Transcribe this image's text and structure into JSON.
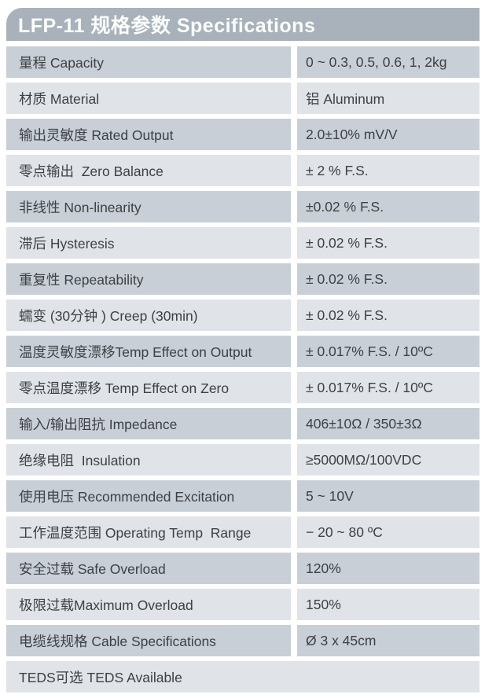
{
  "header": {
    "title": "LFP-11 规格参数 Specifications"
  },
  "colors": {
    "page_background": "#ffffff",
    "header_background": "#a9b2ba",
    "header_text": "#fcfdfd",
    "row_dark": "#c9cfd6",
    "row_light": "#e0e3e7",
    "cell_text": "#3d4145"
  },
  "table": {
    "rows": [
      {
        "label": "量程 Capacity",
        "value": "0 ~ 0.3, 0.5, 0.6, 1, 2kg"
      },
      {
        "label": "材质 Material",
        "value": "铝 Aluminum"
      },
      {
        "label": "输出灵敏度 Rated Output",
        "value": "2.0±10% mV/V"
      },
      {
        "label": "零点输出  Zero Balance",
        "value": "± 2 % F.S."
      },
      {
        "label": "非线性 Non-linearity",
        "value": "±0.02 % F.S."
      },
      {
        "label": "滞后 Hysteresis",
        "value": "± 0.02 % F.S."
      },
      {
        "label": "重复性 Repeatability",
        "value": "± 0.02 % F.S."
      },
      {
        "label": "蠕变 (30分钟 ) Creep (30min)",
        "value": "± 0.02 % F.S."
      },
      {
        "label": "温度灵敏度漂移Temp Effect on Output",
        "value": "± 0.017% F.S. / 10ºC"
      },
      {
        "label": "零点温度漂移 Temp Effect on Zero",
        "value": "± 0.017% F.S. / 10ºC"
      },
      {
        "label": "输入/输出阻抗 Impedance",
        "value": "406±10Ω / 350±3Ω"
      },
      {
        "label": "绝缘电阻  Insulation",
        "value": "≥5000MΩ/100VDC"
      },
      {
        "label": "使用电压 Recommended Excitation",
        "value": "5 ~ 10V"
      },
      {
        "label": "工作温度范围 Operating Temp  Range",
        "value": "− 20 ~ 80 ºC"
      },
      {
        "label": "安全过载 Safe Overload",
        "value": "120%"
      },
      {
        "label": "极限过载Maximum Overload",
        "value": "150%"
      },
      {
        "label": "电缆线规格 Cable Specifications",
        "value": "Ø 3 x 45cm"
      },
      {
        "label": "TEDS可选 TEDS Available",
        "value": ""
      }
    ]
  }
}
